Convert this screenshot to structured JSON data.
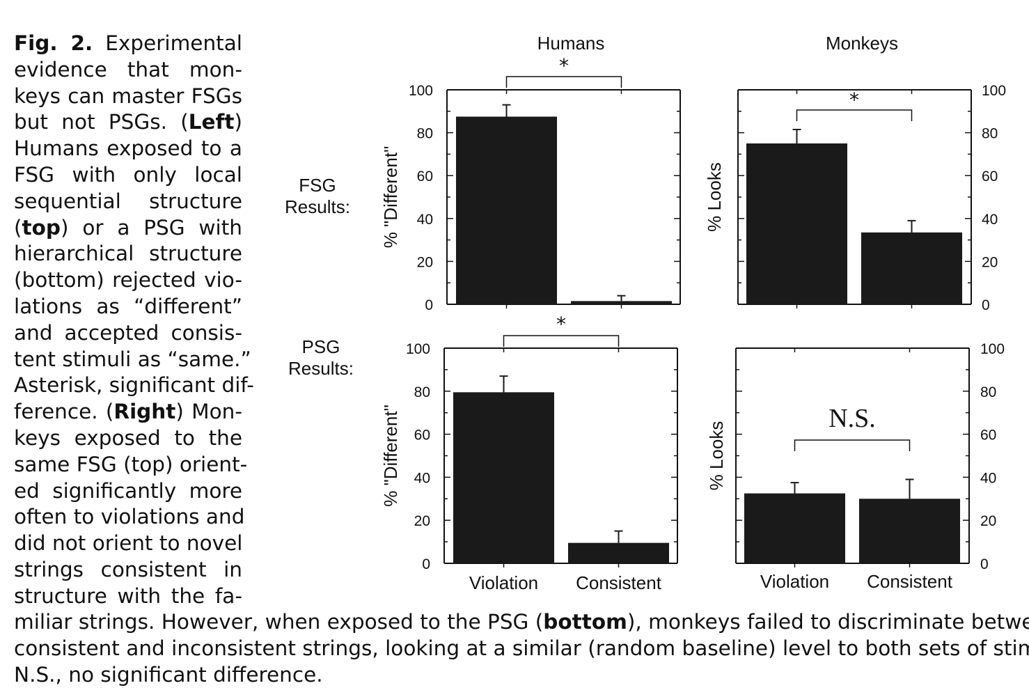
{
  "caption": {
    "fig_label": "Fig. 2.",
    "side_lines": [
      [
        {
          "t": "Fig. 2.",
          "b": true
        },
        {
          "t": " Experimental"
        }
      ],
      [
        {
          "t": "evidence that mon-"
        }
      ],
      [
        {
          "t": "keys can master FSGs"
        }
      ],
      [
        {
          "t": "but not PSGs. ("
        },
        {
          "t": "Left",
          "b": true
        },
        {
          "t": ")"
        }
      ],
      [
        {
          "t": "Humans exposed to a"
        }
      ],
      [
        {
          "t": "FSG with only local"
        }
      ],
      [
        {
          "t": "sequential structure"
        }
      ],
      [
        {
          "t": "("
        },
        {
          "t": "top",
          "b": true
        },
        {
          "t": ") or a PSG with"
        }
      ],
      [
        {
          "t": "hierarchical structure"
        }
      ],
      [
        {
          "t": "(bottom) rejected vio-"
        }
      ],
      [
        {
          "t": "lations as “different”"
        }
      ],
      [
        {
          "t": "and accepted consis-"
        }
      ],
      [
        {
          "t": "tent stimuli as “same.”"
        }
      ],
      [
        {
          "t": "Asterisk, significant dif-"
        }
      ],
      [
        {
          "t": "ference. ("
        },
        {
          "t": "Right",
          "b": true
        },
        {
          "t": ") Mon-"
        }
      ],
      [
        {
          "t": "keys exposed to the"
        }
      ],
      [
        {
          "t": "same FSG (top) orient-"
        }
      ],
      [
        {
          "t": "ed significantly more"
        }
      ],
      [
        {
          "t": "often to violations and"
        }
      ],
      [
        {
          "t": "did not orient to novel"
        }
      ],
      [
        {
          "t": "strings consistent in"
        }
      ],
      [
        {
          "t": "structure with the fa-"
        }
      ]
    ],
    "bottom_lines": [
      [
        {
          "t": "miliar strings. However, when exposed to the PSG ("
        },
        {
          "t": "bottom",
          "b": true
        },
        {
          "t": "), monkeys failed to discriminate between"
        }
      ],
      [
        {
          "t": "consistent and inconsistent strings, looking at a similar (random baseline) level to both sets of stimuli."
        }
      ],
      [
        {
          "t": "N.S., no significant difference."
        }
      ]
    ]
  },
  "column_titles": [
    "Humans",
    "Monkeys"
  ],
  "row_labels": [
    {
      "line1": "FSG",
      "line2": "Results:"
    },
    {
      "line1": "PSG",
      "line2": "Results:"
    }
  ],
  "colors": {
    "bar": "#1a1a1a",
    "axis": "#111111",
    "text": "#111111"
  },
  "chart_data": [
    {
      "type": "bar",
      "panel": "humans-fsg",
      "categories": [
        "Violation",
        "Consistent"
      ],
      "values": [
        87.5,
        1.5
      ],
      "errors": [
        5.5,
        2.5
      ],
      "ylabel": "% \"Different\"",
      "ylim": [
        0,
        100
      ],
      "yticks": [
        "0",
        "20",
        "40",
        "60",
        "80",
        "100"
      ],
      "significance": "*"
    },
    {
      "type": "bar",
      "panel": "monkeys-fsg",
      "categories": [
        "Violation",
        "Consistent"
      ],
      "values": [
        75,
        33.5
      ],
      "errors": [
        6.5,
        5.5
      ],
      "ylabel": "% Looks",
      "ylim": [
        0,
        100
      ],
      "yticks": [
        "0",
        "20",
        "40",
        "60",
        "80",
        "100"
      ],
      "significance": "*"
    },
    {
      "type": "bar",
      "panel": "humans-psg",
      "categories": [
        "Violation",
        "Consistent"
      ],
      "values": [
        79.5,
        9.5
      ],
      "errors": [
        7.5,
        5.5
      ],
      "ylabel": "% \"Different\"",
      "ylim": [
        0,
        100
      ],
      "yticks": [
        "0",
        "20",
        "40",
        "60",
        "80",
        "100"
      ],
      "significance": "*"
    },
    {
      "type": "bar",
      "panel": "monkeys-psg",
      "categories": [
        "Violation",
        "Consistent"
      ],
      "values": [
        32.5,
        30
      ],
      "errors": [
        5,
        9
      ],
      "ylabel": "% Looks",
      "ylim": [
        0,
        100
      ],
      "yticks": [
        "0",
        "20",
        "40",
        "60",
        "80",
        "100"
      ],
      "significance": "N.S."
    }
  ]
}
